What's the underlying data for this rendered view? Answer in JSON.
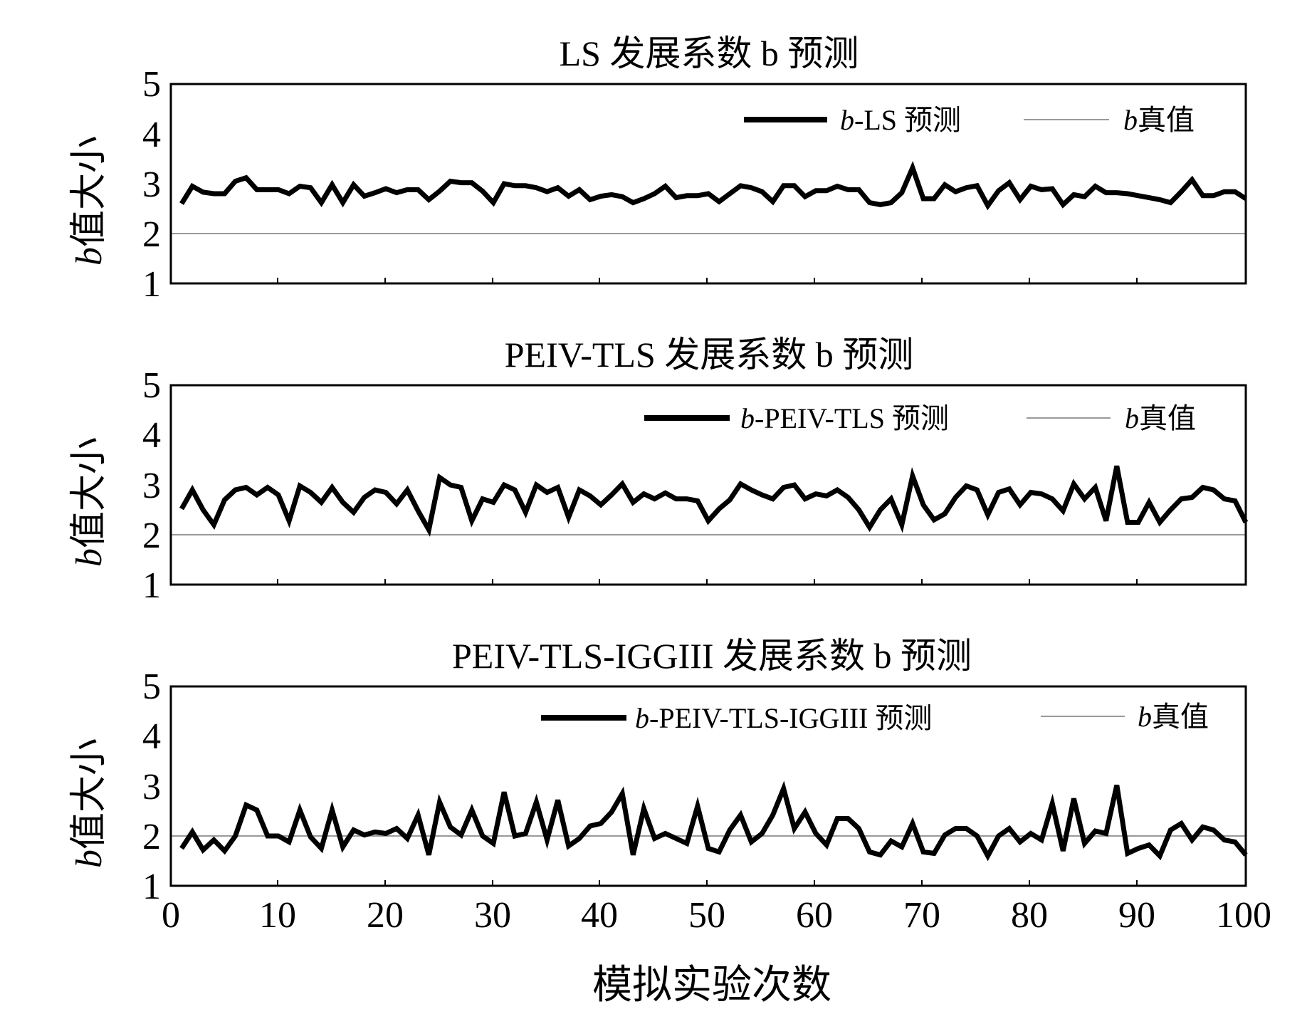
{
  "chart_data": [
    {
      "type": "line",
      "title": "LS 发展系数 b 预测",
      "ylabel": "b 值大小",
      "ylabel_var": "b",
      "ylabel_rest": "值大小",
      "xlim": [
        0,
        100
      ],
      "ylim": [
        1,
        5
      ],
      "yticks": [
        1,
        2,
        3,
        4,
        5
      ],
      "grid": false,
      "legend_position": "top-right",
      "series": [
        {
          "name": "b-LS 预测",
          "legend_var": "b",
          "legend_rest": "-LS 预测",
          "style": "thick",
          "x": [
            1,
            2,
            3,
            4,
            5,
            6,
            7,
            8,
            9,
            10,
            11,
            12,
            13,
            14,
            15,
            16,
            17,
            18,
            19,
            20,
            21,
            22,
            23,
            24,
            25,
            26,
            27,
            28,
            29,
            30,
            31,
            32,
            33,
            34,
            35,
            36,
            37,
            38,
            39,
            40,
            41,
            42,
            43,
            44,
            45,
            46,
            47,
            48,
            49,
            50,
            51,
            52,
            53,
            54,
            55,
            56,
            57,
            58,
            59,
            60,
            61,
            62,
            63,
            64,
            65,
            66,
            67,
            68,
            69,
            70,
            71,
            72,
            73,
            74,
            75,
            76,
            77,
            78,
            79,
            80,
            81,
            82,
            83,
            84,
            85,
            86,
            87,
            88,
            89,
            90,
            91,
            92,
            93,
            94,
            95,
            96,
            97,
            98,
            99,
            100
          ],
          "values": [
            2.6,
            2.95,
            2.83,
            2.8,
            2.8,
            3.05,
            3.12,
            2.88,
            2.88,
            2.88,
            2.8,
            2.95,
            2.92,
            2.62,
            2.98,
            2.62,
            2.98,
            2.75,
            2.82,
            2.9,
            2.82,
            2.88,
            2.88,
            2.68,
            2.85,
            3.05,
            3.02,
            3.02,
            2.85,
            2.62,
            3.0,
            2.96,
            2.96,
            2.92,
            2.84,
            2.92,
            2.75,
            2.88,
            2.68,
            2.75,
            2.78,
            2.74,
            2.62,
            2.7,
            2.8,
            2.95,
            2.72,
            2.76,
            2.76,
            2.8,
            2.64,
            2.8,
            2.96,
            2.92,
            2.84,
            2.64,
            2.96,
            2.96,
            2.74,
            2.86,
            2.86,
            2.95,
            2.88,
            2.88,
            2.62,
            2.58,
            2.62,
            2.82,
            3.32,
            2.7,
            2.7,
            2.98,
            2.84,
            2.92,
            2.96,
            2.56,
            2.86,
            3.02,
            2.68,
            2.95,
            2.88,
            2.9,
            2.58,
            2.78,
            2.74,
            2.95,
            2.82,
            2.82,
            2.8,
            2.76,
            2.72,
            2.68,
            2.62,
            2.84,
            3.08,
            2.76,
            2.76,
            2.84,
            2.84,
            2.7
          ]
        },
        {
          "name": "b真值",
          "legend_var": "b",
          "legend_rest": "真值",
          "style": "thin",
          "x": [
            0,
            100
          ],
          "values": [
            2,
            2
          ]
        }
      ]
    },
    {
      "type": "line",
      "title": "PEIV-TLS 发展系数 b 预测",
      "ylabel": "b 值大小",
      "ylabel_var": "b",
      "ylabel_rest": "值大小",
      "xlim": [
        0,
        100
      ],
      "ylim": [
        1,
        5
      ],
      "yticks": [
        1,
        2,
        3,
        4,
        5
      ],
      "grid": false,
      "legend_position": "top-right",
      "series": [
        {
          "name": "b-PEIV-TLS 预测",
          "legend_var": "b",
          "legend_rest": "-PEIV-TLS 预测",
          "style": "thick",
          "x": [
            1,
            2,
            3,
            4,
            5,
            6,
            7,
            8,
            9,
            10,
            11,
            12,
            13,
            14,
            15,
            16,
            17,
            18,
            19,
            20,
            21,
            22,
            23,
            24,
            25,
            26,
            27,
            28,
            29,
            30,
            31,
            32,
            33,
            34,
            35,
            36,
            37,
            38,
            39,
            40,
            41,
            42,
            43,
            44,
            45,
            46,
            47,
            48,
            49,
            50,
            51,
            52,
            53,
            54,
            55,
            56,
            57,
            58,
            59,
            60,
            61,
            62,
            63,
            64,
            65,
            66,
            67,
            68,
            69,
            70,
            71,
            72,
            73,
            74,
            75,
            76,
            77,
            78,
            79,
            80,
            81,
            82,
            83,
            84,
            85,
            86,
            87,
            88,
            89,
            90,
            91,
            92,
            93,
            94,
            95,
            96,
            97,
            98,
            99,
            100
          ],
          "values": [
            2.52,
            2.9,
            2.5,
            2.2,
            2.7,
            2.9,
            2.95,
            2.8,
            2.95,
            2.8,
            2.28,
            2.98,
            2.85,
            2.65,
            2.95,
            2.65,
            2.45,
            2.75,
            2.9,
            2.85,
            2.62,
            2.9,
            2.48,
            2.1,
            3.15,
            3.0,
            2.95,
            2.28,
            2.72,
            2.65,
            3.0,
            2.9,
            2.45,
            3.0,
            2.85,
            2.95,
            2.35,
            2.9,
            2.78,
            2.6,
            2.8,
            3.02,
            2.65,
            2.82,
            2.72,
            2.84,
            2.72,
            2.72,
            2.68,
            2.28,
            2.52,
            2.7,
            3.02,
            2.9,
            2.8,
            2.72,
            2.95,
            3.0,
            2.72,
            2.82,
            2.78,
            2.9,
            2.75,
            2.5,
            2.15,
            2.5,
            2.72,
            2.2,
            3.18,
            2.6,
            2.3,
            2.42,
            2.75,
            2.98,
            2.9,
            2.4,
            2.85,
            2.92,
            2.6,
            2.85,
            2.82,
            2.72,
            2.48,
            3.02,
            2.72,
            2.95,
            2.28,
            3.38,
            2.25,
            2.25,
            2.65,
            2.25,
            2.5,
            2.72,
            2.75,
            2.95,
            2.9,
            2.72,
            2.68,
            2.25
          ]
        },
        {
          "name": "b真值",
          "legend_var": "b",
          "legend_rest": "真值",
          "style": "thin",
          "x": [
            0,
            100
          ],
          "values": [
            2,
            2
          ]
        }
      ]
    },
    {
      "type": "line",
      "title": "PEIV-TLS-IGGIII 发展系数 b 预测",
      "ylabel": "b 值大小",
      "ylabel_var": "b",
      "ylabel_rest": "值大小",
      "xlabel": "模拟实验次数",
      "xlim": [
        0,
        100
      ],
      "ylim": [
        1,
        5
      ],
      "yticks": [
        1,
        2,
        3,
        4,
        5
      ],
      "xticks": [
        0,
        10,
        20,
        30,
        40,
        50,
        60,
        70,
        80,
        90,
        100
      ],
      "grid": false,
      "legend_position": "top-right",
      "series": [
        {
          "name": "b-PEIV-TLS-IGGIII 预测",
          "legend_var": "b",
          "legend_rest": "-PEIV-TLS-IGGIII 预测",
          "style": "thick",
          "x": [
            1,
            2,
            3,
            4,
            5,
            6,
            7,
            8,
            9,
            10,
            11,
            12,
            13,
            14,
            15,
            16,
            17,
            18,
            19,
            20,
            21,
            22,
            23,
            24,
            25,
            26,
            27,
            28,
            29,
            30,
            31,
            32,
            33,
            34,
            35,
            36,
            37,
            38,
            39,
            40,
            41,
            42,
            43,
            44,
            45,
            46,
            47,
            48,
            49,
            50,
            51,
            52,
            53,
            54,
            55,
            56,
            57,
            58,
            59,
            60,
            61,
            62,
            63,
            64,
            65,
            66,
            67,
            68,
            69,
            70,
            71,
            72,
            73,
            74,
            75,
            76,
            77,
            78,
            79,
            80,
            81,
            82,
            83,
            84,
            85,
            86,
            87,
            88,
            89,
            90,
            91,
            92,
            93,
            94,
            95,
            96,
            97,
            98,
            99,
            100
          ],
          "values": [
            1.75,
            2.08,
            1.72,
            1.92,
            1.7,
            2.0,
            2.62,
            2.52,
            2.0,
            2.0,
            1.88,
            2.52,
            1.98,
            1.75,
            2.52,
            1.78,
            2.12,
            2.02,
            2.08,
            2.05,
            2.15,
            1.95,
            2.42,
            1.62,
            2.68,
            2.18,
            2.02,
            2.52,
            2.0,
            1.85,
            2.88,
            2.0,
            2.05,
            2.68,
            1.92,
            2.72,
            1.8,
            1.95,
            2.2,
            2.25,
            2.48,
            2.85,
            1.62,
            2.55,
            1.95,
            2.05,
            1.95,
            1.85,
            2.6,
            1.75,
            1.68,
            2.12,
            2.42,
            1.88,
            2.05,
            2.42,
            2.95,
            2.15,
            2.48,
            2.05,
            1.82,
            2.35,
            2.35,
            2.15,
            1.68,
            1.62,
            1.9,
            1.78,
            2.25,
            1.68,
            1.65,
            2.02,
            2.15,
            2.15,
            2.0,
            1.6,
            2.0,
            2.15,
            1.88,
            2.05,
            1.92,
            2.65,
            1.7,
            2.75,
            1.85,
            2.1,
            2.05,
            3.02,
            1.65,
            1.75,
            1.82,
            1.6,
            2.12,
            2.25,
            1.92,
            2.18,
            2.12,
            1.92,
            1.88,
            1.62
          ]
        },
        {
          "name": "b真值",
          "legend_var": "b",
          "legend_rest": "真值",
          "style": "thin",
          "x": [
            0,
            100
          ],
          "values": [
            2,
            2
          ]
        }
      ]
    }
  ]
}
